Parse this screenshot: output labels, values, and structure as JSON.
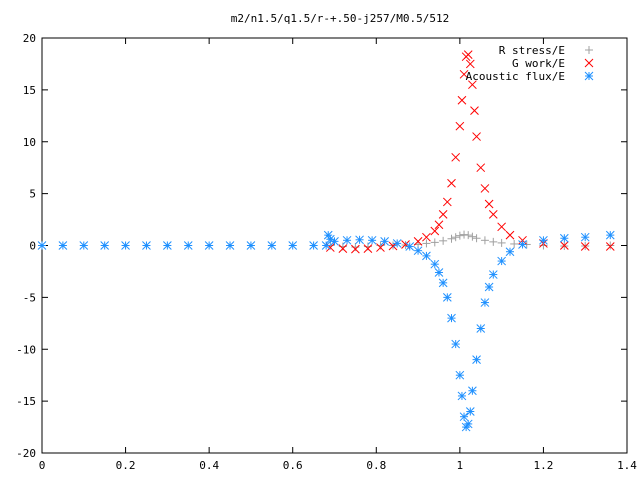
{
  "chart_data": {
    "type": "scatter",
    "title": "m2/n1.5/q1.5/r-+.50-j257/M0.5/512",
    "xlabel": "",
    "ylabel": "",
    "xlim": [
      0,
      1.4
    ],
    "ylim": [
      -20,
      20
    ],
    "x_ticks": [
      0,
      0.2,
      0.4,
      0.6,
      0.8,
      1,
      1.2,
      1.4
    ],
    "x_tick_labels": [
      "0",
      "0.2",
      "0.4",
      "0.6",
      "0.8",
      "1",
      "1.2",
      "1.4"
    ],
    "y_ticks": [
      -20,
      -15,
      -10,
      -5,
      0,
      5,
      10,
      15,
      20
    ],
    "y_tick_labels": [
      "-20",
      "-15",
      "-10",
      "-5",
      "0",
      "5",
      "10",
      "15",
      "20"
    ],
    "grid": false,
    "legend_position": "top-right",
    "series": [
      {
        "name": "R stress/E",
        "marker": "plus",
        "color": "#a0a0a0",
        "points": [
          [
            0.69,
            0.0
          ],
          [
            0.72,
            -0.1
          ],
          [
            0.75,
            -0.15
          ],
          [
            0.78,
            -0.1
          ],
          [
            0.81,
            0.0
          ],
          [
            0.84,
            0.0
          ],
          [
            0.87,
            0.05
          ],
          [
            0.9,
            0.1
          ],
          [
            0.92,
            0.2
          ],
          [
            0.94,
            0.3
          ],
          [
            0.96,
            0.45
          ],
          [
            0.98,
            0.65
          ],
          [
            0.99,
            0.8
          ],
          [
            1.0,
            0.95
          ],
          [
            1.01,
            1.05
          ],
          [
            1.02,
            1.0
          ],
          [
            1.03,
            0.85
          ],
          [
            1.04,
            0.7
          ],
          [
            1.06,
            0.5
          ],
          [
            1.08,
            0.35
          ],
          [
            1.1,
            0.25
          ],
          [
            1.13,
            0.15
          ],
          [
            1.16,
            0.1
          ],
          [
            1.2,
            0.0
          ],
          [
            1.25,
            -0.05
          ],
          [
            1.3,
            -0.05
          ],
          [
            1.36,
            0.0
          ]
        ]
      },
      {
        "name": "G work/E",
        "marker": "cross",
        "color": "#ff0000",
        "points": [
          [
            0.69,
            -0.2
          ],
          [
            0.72,
            -0.3
          ],
          [
            0.75,
            -0.35
          ],
          [
            0.78,
            -0.3
          ],
          [
            0.81,
            -0.2
          ],
          [
            0.84,
            -0.05
          ],
          [
            0.87,
            0.1
          ],
          [
            0.9,
            0.4
          ],
          [
            0.92,
            0.8
          ],
          [
            0.94,
            1.4
          ],
          [
            0.95,
            2.0
          ],
          [
            0.96,
            3.0
          ],
          [
            0.97,
            4.2
          ],
          [
            0.98,
            6.0
          ],
          [
            0.99,
            8.5
          ],
          [
            1.0,
            11.5
          ],
          [
            1.005,
            14.0
          ],
          [
            1.01,
            16.5
          ],
          [
            1.015,
            18.2
          ],
          [
            1.02,
            18.4
          ],
          [
            1.025,
            17.5
          ],
          [
            1.03,
            15.5
          ],
          [
            1.035,
            13.0
          ],
          [
            1.04,
            10.5
          ],
          [
            1.05,
            7.5
          ],
          [
            1.06,
            5.5
          ],
          [
            1.07,
            4.0
          ],
          [
            1.08,
            3.0
          ],
          [
            1.1,
            1.8
          ],
          [
            1.12,
            1.0
          ],
          [
            1.15,
            0.5
          ],
          [
            1.2,
            0.2
          ],
          [
            1.25,
            0.0
          ],
          [
            1.3,
            -0.1
          ],
          [
            1.36,
            -0.1
          ]
        ]
      },
      {
        "name": "Acoustic flux/E",
        "marker": "star",
        "color": "#1e90ff",
        "points": [
          [
            0.0,
            0.0
          ],
          [
            0.05,
            0.0
          ],
          [
            0.1,
            0.0
          ],
          [
            0.15,
            0.0
          ],
          [
            0.2,
            0.0
          ],
          [
            0.25,
            0.0
          ],
          [
            0.3,
            0.0
          ],
          [
            0.35,
            0.0
          ],
          [
            0.4,
            0.0
          ],
          [
            0.45,
            0.0
          ],
          [
            0.5,
            0.0
          ],
          [
            0.55,
            0.0
          ],
          [
            0.6,
            0.0
          ],
          [
            0.65,
            0.0
          ],
          [
            0.68,
            0.0
          ],
          [
            0.685,
            1.0
          ],
          [
            0.69,
            0.6
          ],
          [
            0.7,
            0.4
          ],
          [
            0.73,
            0.5
          ],
          [
            0.76,
            0.55
          ],
          [
            0.79,
            0.5
          ],
          [
            0.82,
            0.4
          ],
          [
            0.85,
            0.2
          ],
          [
            0.88,
            -0.1
          ],
          [
            0.9,
            -0.5
          ],
          [
            0.92,
            -1.0
          ],
          [
            0.94,
            -1.8
          ],
          [
            0.95,
            -2.6
          ],
          [
            0.96,
            -3.6
          ],
          [
            0.97,
            -5.0
          ],
          [
            0.98,
            -7.0
          ],
          [
            0.99,
            -9.5
          ],
          [
            1.0,
            -12.5
          ],
          [
            1.005,
            -14.5
          ],
          [
            1.01,
            -16.5
          ],
          [
            1.015,
            -17.5
          ],
          [
            1.02,
            -17.2
          ],
          [
            1.025,
            -16.0
          ],
          [
            1.03,
            -14.0
          ],
          [
            1.04,
            -11.0
          ],
          [
            1.05,
            -8.0
          ],
          [
            1.06,
            -5.5
          ],
          [
            1.07,
            -4.0
          ],
          [
            1.08,
            -2.8
          ],
          [
            1.1,
            -1.5
          ],
          [
            1.12,
            -0.6
          ],
          [
            1.15,
            0.1
          ],
          [
            1.2,
            0.5
          ],
          [
            1.25,
            0.7
          ],
          [
            1.3,
            0.8
          ],
          [
            1.36,
            1.0
          ]
        ]
      }
    ]
  }
}
